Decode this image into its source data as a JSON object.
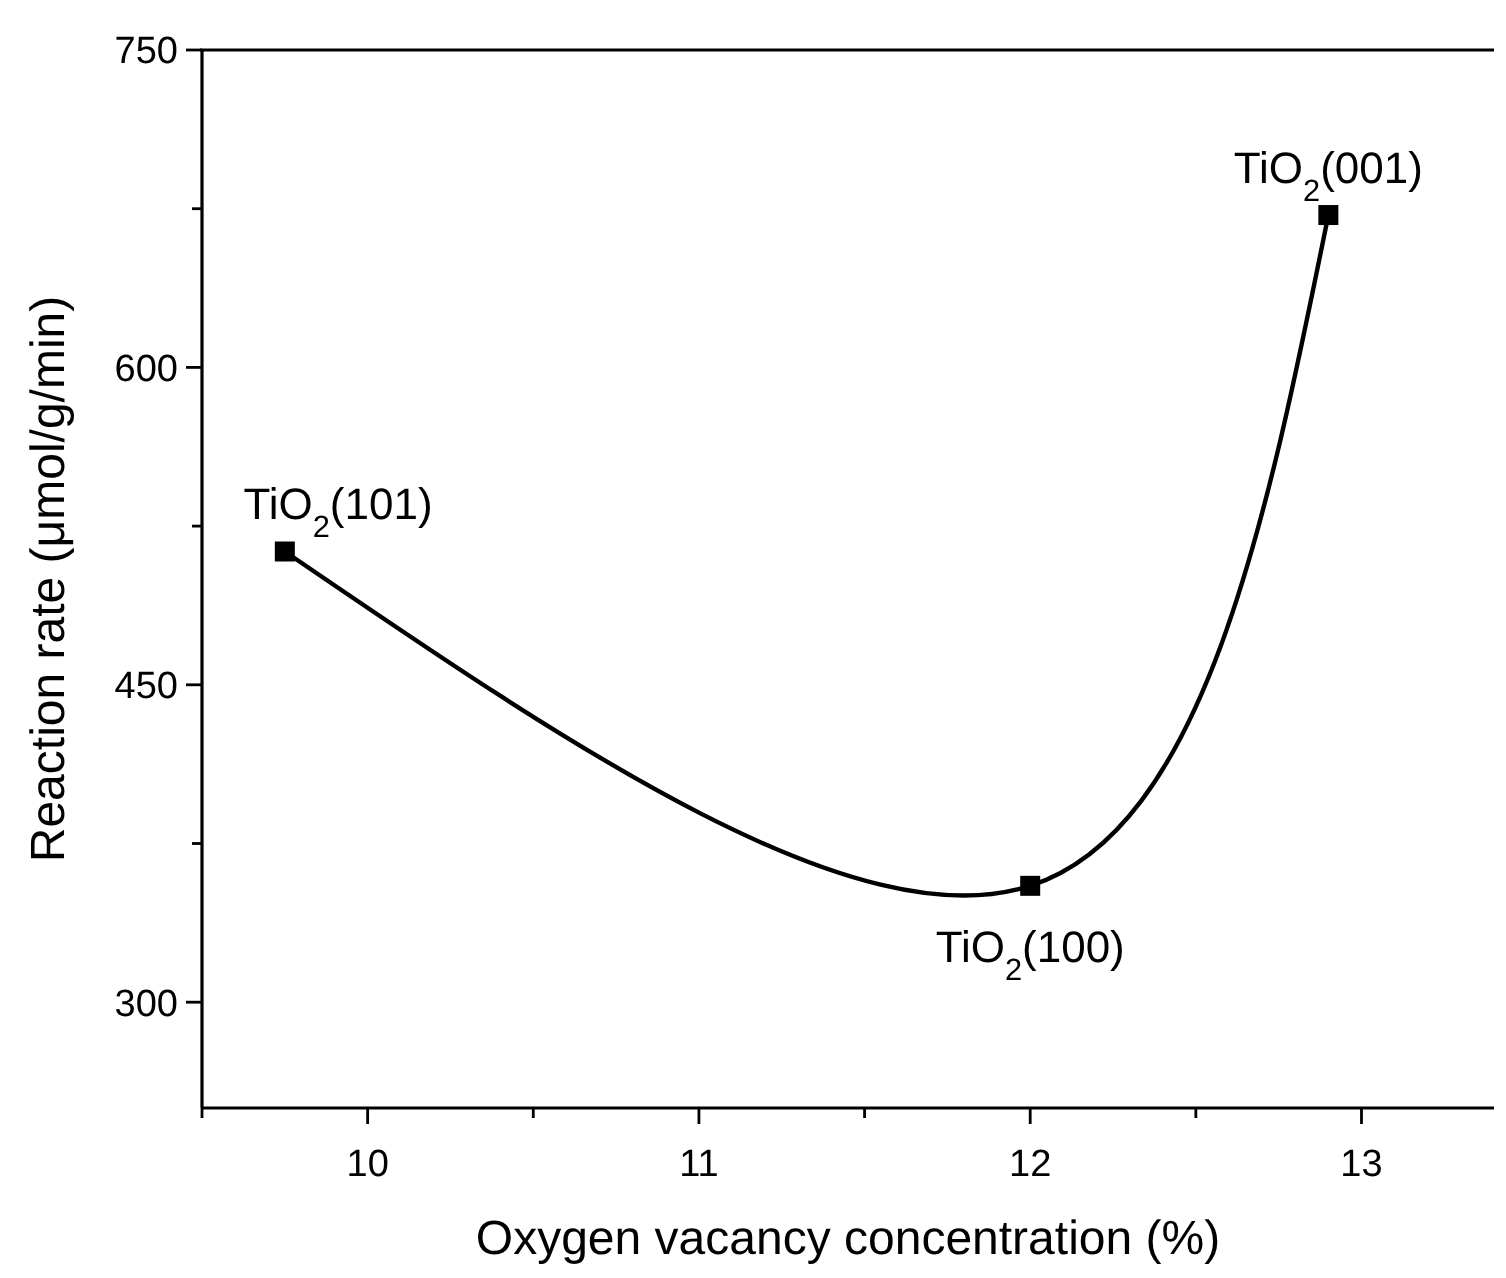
{
  "chart_data": {
    "type": "line",
    "xlabel": "Oxygen vacancy concentration (%)",
    "ylabel": "Reaction rate (μmol/g/min)",
    "x": [
      9.75,
      12,
      12.9
    ],
    "series": [
      {
        "color": "#000000",
        "values": [
          513,
          355,
          672
        ]
      }
    ],
    "xlim": [
      9.5,
      13.4
    ],
    "ylim": [
      250,
      750
    ],
    "xticks": [
      {
        "value": 9.5,
        "label": null
      },
      10,
      {
        "value": 10.5,
        "label": null
      },
      11,
      {
        "value": 11.5,
        "label": null
      },
      12,
      {
        "value": 12.5,
        "label": null
      },
      13
    ],
    "yticks": [
      300,
      {
        "value": 375,
        "label": null
      },
      450,
      {
        "value": 525,
        "label": null
      },
      600,
      {
        "value": 675,
        "label": null
      },
      750
    ],
    "marker": "square",
    "line_style": "solid",
    "annotations": [
      {
        "text": "TiO$_{2}$(101)",
        "x": 9.75,
        "y": 513
      },
      {
        "text": "TiO$_{2}$(100)",
        "x": 12,
        "y": 355
      },
      {
        "text": "TiO$_{2}$(001)",
        "x": 12.9,
        "y": 672
      }
    ]
  }
}
